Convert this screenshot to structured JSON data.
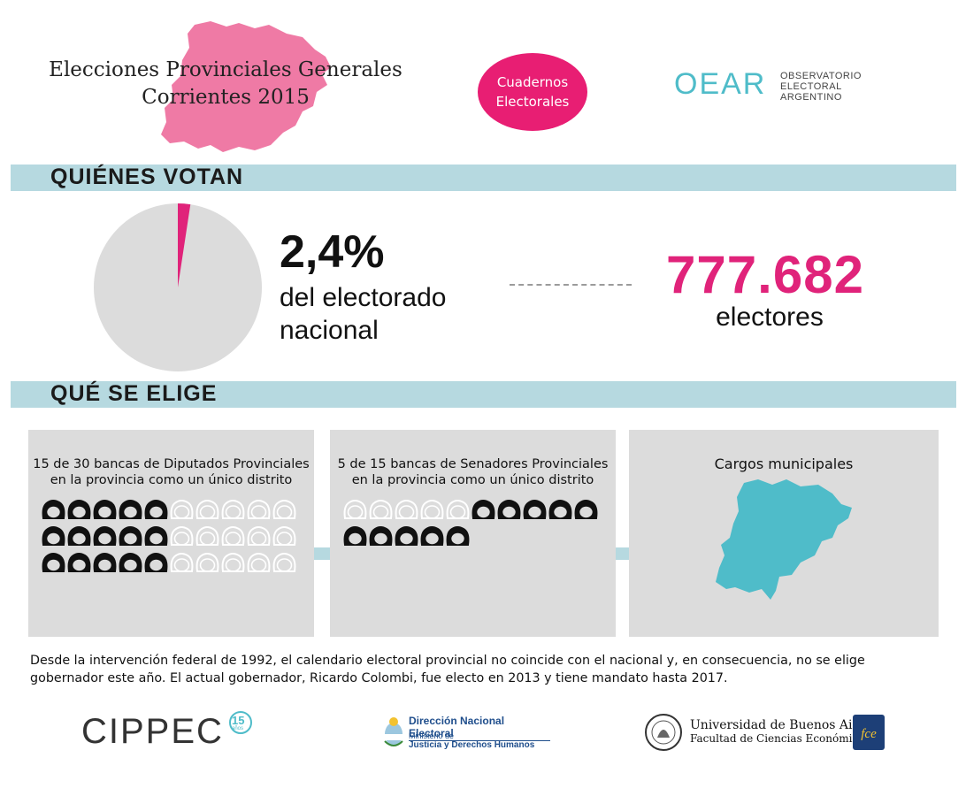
{
  "header": {
    "title_line1": "Elecciones Provinciales Generales",
    "title_line2": "Corrientes 2015",
    "badge_line1": "Cuadernos",
    "badge_line2": "Electorales",
    "oear_mark": "OEAR",
    "oear_line1": "OBSERVATORIO",
    "oear_line2": "ELECTORAL",
    "oear_line3": "ARGENTINO"
  },
  "section1": {
    "title": "QUIÉNES VOTAN",
    "percent": "2,4%",
    "percent_line1": "del electorado",
    "percent_line2": "nacional",
    "voters_number": "777.682",
    "voters_label": "electores",
    "pie_share": 0.024
  },
  "section2": {
    "title": "QUÉ SE ELIGE",
    "panels": [
      {
        "line1": "15 de 30 bancas de Diputados Provinciales",
        "line2": "en la provincia como un único distrito",
        "elected": 15,
        "total": 30
      },
      {
        "line1": "5 de 15 bancas de Senadores Provinciales",
        "line2": "en la provincia como un único distrito",
        "elected": 5,
        "total": 15
      },
      {
        "line1": "Cargos municipales"
      }
    ]
  },
  "note": {
    "text": "Desde la intervención federal de 1992, el calendario electoral provincial no coincide con el nacional y, en consecuencia, no se elige gobernador este año. El actual gobernador, Ricardo Colombi, fue electo en 2013 y tiene mandato hasta 2017."
  },
  "footer": {
    "cippec": "CIPPEC",
    "cippec_years": "15",
    "cippec_years_word": "años",
    "dne_line1": "Dirección Nacional Electoral",
    "dne_line2": "Ministerio de",
    "dne_line3": "Justicia y Derechos Humanos",
    "uba_line1": "Universidad de Buenos Aires",
    "uba_line2": "Facultad de Ciencias Económicas",
    "fce": "fce"
  },
  "colors": {
    "accent_pink": "#e81e73",
    "accent_teal": "#4fbcc9",
    "bar_light_blue": "#b6d9e0",
    "panel_gray": "#dcdcdc"
  }
}
